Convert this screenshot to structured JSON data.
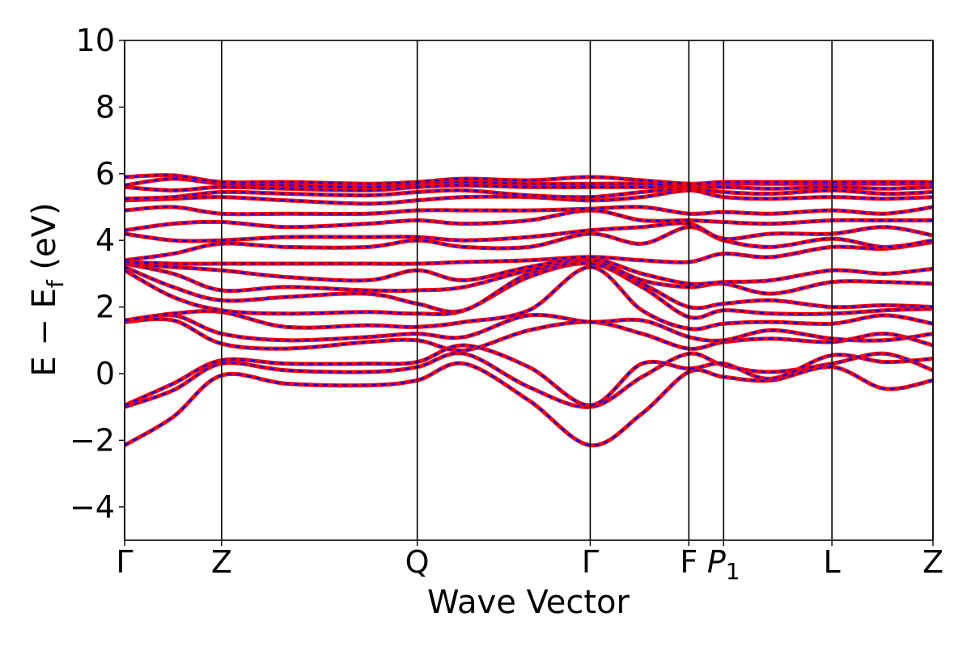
{
  "chart_data": {
    "type": "line",
    "title": "",
    "xlabel": "Wave Vector",
    "ylabel": "E − E",
    "ylabel_sub": "f",
    "ylabel_unit": " (eV)",
    "ylim": [
      -5,
      10
    ],
    "yticks": [
      -4,
      -2,
      0,
      2,
      4,
      6,
      8,
      10
    ],
    "ytick_labels": [
      "−4",
      "−2",
      "0",
      "2",
      "4",
      "6",
      "8",
      "10"
    ],
    "xlim": [
      0,
      1
    ],
    "kpoints": [
      {
        "label": "Γ",
        "sub": "",
        "x": 0.0
      },
      {
        "label": "Z",
        "sub": "",
        "x": 0.12
      },
      {
        "label": "Q",
        "sub": "",
        "x": 0.362
      },
      {
        "label": "Γ",
        "sub": "",
        "x": 0.576
      },
      {
        "label": "F",
        "sub": "",
        "x": 0.698
      },
      {
        "label": "P",
        "sub": "1",
        "x": 0.741
      },
      {
        "label": "L",
        "sub": "",
        "x": 0.875
      },
      {
        "label": "Z",
        "sub": "",
        "x": 1.0
      }
    ],
    "grid": false,
    "legend": "none",
    "series_styles": [
      {
        "color": "#ff0000",
        "style": "solid"
      },
      {
        "color": "#0000ff",
        "style": "dashed"
      }
    ],
    "bands": [
      {
        "x": [
          0,
          0.06,
          0.12,
          0.2,
          0.3,
          0.362,
          0.42,
          0.5,
          0.576,
          0.64,
          0.698,
          0.741,
          0.8,
          0.875,
          0.94,
          1.0
        ],
        "y": [
          -2.15,
          -1.3,
          -0.05,
          -0.3,
          -0.35,
          -0.2,
          0.3,
          -0.8,
          -2.15,
          -1.2,
          0.05,
          -0.1,
          -0.2,
          0.2,
          -0.45,
          -0.2
        ]
      },
      {
        "x": [
          0,
          0.06,
          0.12,
          0.2,
          0.3,
          0.362,
          0.42,
          0.5,
          0.576,
          0.64,
          0.698,
          0.741,
          0.8,
          0.875,
          0.94,
          1.0
        ],
        "y": [
          -1.0,
          -0.5,
          0.3,
          0.1,
          0.05,
          0.2,
          0.6,
          -0.4,
          -1.0,
          -0.1,
          0.6,
          0.25,
          0.05,
          0.3,
          0.6,
          0.1
        ]
      },
      {
        "x": [
          0,
          0.06,
          0.12,
          0.2,
          0.3,
          0.362,
          0.42,
          0.5,
          0.576,
          0.64,
          0.698,
          0.741,
          0.8,
          0.875,
          0.94,
          1.0
        ],
        "y": [
          -0.95,
          -0.3,
          0.4,
          0.3,
          0.3,
          0.35,
          0.85,
          0.2,
          -0.95,
          0.3,
          0.15,
          0.3,
          -0.15,
          0.55,
          0.35,
          0.45
        ]
      },
      {
        "x": [
          0,
          0.06,
          0.12,
          0.2,
          0.3,
          0.362,
          0.42,
          0.5,
          0.576,
          0.64,
          0.698,
          0.741,
          0.8,
          0.875,
          0.94,
          1.0
        ],
        "y": [
          1.55,
          1.6,
          0.9,
          0.75,
          0.95,
          1.0,
          0.7,
          1.3,
          1.55,
          1.2,
          0.75,
          0.95,
          1.05,
          0.95,
          1.2,
          0.85
        ]
      },
      {
        "x": [
          0,
          0.06,
          0.12,
          0.2,
          0.3,
          0.362,
          0.42,
          0.5,
          0.576,
          0.64,
          0.698,
          0.741,
          0.8,
          0.875,
          0.94,
          1.0
        ],
        "y": [
          1.55,
          1.75,
          1.2,
          1.0,
          1.1,
          1.2,
          1.1,
          1.75,
          1.55,
          1.6,
          1.1,
          1.0,
          1.3,
          1.05,
          1.0,
          1.2
        ]
      },
      {
        "x": [
          0,
          0.06,
          0.12,
          0.2,
          0.3,
          0.362,
          0.42,
          0.5,
          0.576,
          0.64,
          0.698,
          0.741,
          0.8,
          0.875,
          0.94,
          1.0
        ],
        "y": [
          1.6,
          1.8,
          1.85,
          1.4,
          1.45,
          1.4,
          1.55,
          1.9,
          3.2,
          1.9,
          1.35,
          1.5,
          1.55,
          1.5,
          1.75,
          1.5
        ]
      },
      {
        "x": [
          0,
          0.06,
          0.12,
          0.2,
          0.3,
          0.362,
          0.42,
          0.5,
          0.576,
          0.64,
          0.698,
          0.741,
          0.8,
          0.875,
          0.94,
          1.0
        ],
        "y": [
          3.1,
          2.3,
          1.9,
          1.8,
          1.85,
          1.8,
          1.9,
          2.9,
          3.3,
          2.6,
          1.7,
          1.9,
          1.8,
          1.8,
          1.9,
          1.95
        ]
      },
      {
        "x": [
          0,
          0.06,
          0.12,
          0.2,
          0.3,
          0.362,
          0.42,
          0.5,
          0.576,
          0.64,
          0.698,
          0.741,
          0.8,
          0.875,
          0.94,
          1.0
        ],
        "y": [
          3.2,
          2.6,
          2.2,
          2.3,
          2.4,
          2.1,
          1.9,
          3.0,
          3.3,
          2.7,
          2.0,
          2.1,
          2.2,
          2.0,
          2.05,
          2.0
        ]
      },
      {
        "x": [
          0,
          0.06,
          0.12,
          0.2,
          0.3,
          0.362,
          0.42,
          0.5,
          0.576,
          0.64,
          0.698,
          0.741,
          0.8,
          0.875,
          0.94,
          1.0
        ],
        "y": [
          3.3,
          3.0,
          2.5,
          2.6,
          2.5,
          2.5,
          2.6,
          3.1,
          3.4,
          2.8,
          2.6,
          2.7,
          2.4,
          2.75,
          2.75,
          2.7
        ]
      },
      {
        "x": [
          0,
          0.06,
          0.12,
          0.2,
          0.3,
          0.362,
          0.42,
          0.5,
          0.576,
          0.64,
          0.698,
          0.741,
          0.8,
          0.875,
          0.94,
          1.0
        ],
        "y": [
          3.3,
          3.2,
          3.1,
          2.9,
          2.8,
          3.1,
          2.8,
          3.2,
          3.45,
          3.0,
          2.7,
          2.75,
          2.8,
          3.1,
          3.0,
          3.15
        ]
      },
      {
        "x": [
          0,
          0.06,
          0.12,
          0.2,
          0.3,
          0.362,
          0.42,
          0.5,
          0.576,
          0.64,
          0.698,
          0.741,
          0.8,
          0.875,
          0.94,
          1.0
        ],
        "y": [
          3.35,
          3.3,
          3.3,
          3.3,
          3.3,
          3.3,
          3.35,
          3.4,
          3.5,
          3.4,
          3.35,
          3.6,
          3.5,
          3.8,
          3.75,
          3.95
        ]
      },
      {
        "x": [
          0,
          0.06,
          0.12,
          0.2,
          0.3,
          0.362,
          0.42,
          0.5,
          0.576,
          0.64,
          0.698,
          0.741,
          0.8,
          0.875,
          0.94,
          1.0
        ],
        "y": [
          3.4,
          3.6,
          3.9,
          3.8,
          3.8,
          4.0,
          3.8,
          3.8,
          4.2,
          3.9,
          4.4,
          4.0,
          3.8,
          4.05,
          3.8,
          4.0
        ]
      },
      {
        "x": [
          0,
          0.06,
          0.12,
          0.2,
          0.3,
          0.362,
          0.42,
          0.5,
          0.576,
          0.64,
          0.698,
          0.741,
          0.8,
          0.875,
          0.94,
          1.0
        ],
        "y": [
          4.2,
          4.0,
          4.0,
          4.1,
          4.1,
          4.1,
          4.0,
          4.1,
          4.3,
          4.4,
          4.5,
          4.05,
          4.2,
          4.2,
          4.4,
          4.15
        ]
      },
      {
        "x": [
          0,
          0.06,
          0.12,
          0.2,
          0.3,
          0.362,
          0.42,
          0.5,
          0.576,
          0.64,
          0.698,
          0.741,
          0.8,
          0.875,
          0.94,
          1.0
        ],
        "y": [
          4.3,
          4.5,
          4.55,
          4.4,
          4.5,
          4.6,
          4.5,
          4.6,
          4.9,
          4.6,
          4.6,
          4.55,
          4.5,
          4.6,
          4.6,
          4.6
        ]
      },
      {
        "x": [
          0,
          0.06,
          0.12,
          0.2,
          0.3,
          0.362,
          0.42,
          0.5,
          0.576,
          0.64,
          0.698,
          0.741,
          0.8,
          0.875,
          0.94,
          1.0
        ],
        "y": [
          4.9,
          5.0,
          4.8,
          4.8,
          4.8,
          4.9,
          4.9,
          4.9,
          4.95,
          5.0,
          4.8,
          4.85,
          4.8,
          4.9,
          4.8,
          5.0
        ]
      },
      {
        "x": [
          0,
          0.06,
          0.12,
          0.2,
          0.3,
          0.362,
          0.42,
          0.5,
          0.576,
          0.64,
          0.698,
          0.741,
          0.8,
          0.875,
          0.94,
          1.0
        ],
        "y": [
          5.2,
          5.25,
          5.3,
          5.2,
          5.1,
          5.2,
          5.3,
          5.3,
          5.2,
          5.3,
          5.5,
          5.3,
          5.25,
          5.3,
          5.25,
          5.3
        ]
      },
      {
        "x": [
          0,
          0.06,
          0.12,
          0.2,
          0.3,
          0.362,
          0.42,
          0.5,
          0.576,
          0.64,
          0.698,
          0.741,
          0.8,
          0.875,
          0.94,
          1.0
        ],
        "y": [
          5.25,
          5.3,
          5.45,
          5.4,
          5.35,
          5.45,
          5.5,
          5.35,
          5.3,
          5.45,
          5.55,
          5.45,
          5.4,
          5.5,
          5.4,
          5.45
        ]
      },
      {
        "x": [
          0,
          0.06,
          0.12,
          0.2,
          0.3,
          0.362,
          0.42,
          0.5,
          0.576,
          0.64,
          0.698,
          0.741,
          0.8,
          0.875,
          0.94,
          1.0
        ],
        "y": [
          5.6,
          5.5,
          5.6,
          5.55,
          5.5,
          5.6,
          5.65,
          5.6,
          5.6,
          5.6,
          5.6,
          5.6,
          5.55,
          5.6,
          5.55,
          5.6
        ]
      },
      {
        "x": [
          0,
          0.06,
          0.12,
          0.2,
          0.3,
          0.362,
          0.42,
          0.5,
          0.576,
          0.64,
          0.698,
          0.741,
          0.8,
          0.875,
          0.94,
          1.0
        ],
        "y": [
          5.65,
          5.85,
          5.7,
          5.65,
          5.6,
          5.7,
          5.75,
          5.7,
          5.7,
          5.7,
          5.65,
          5.7,
          5.7,
          5.7,
          5.7,
          5.7
        ]
      },
      {
        "x": [
          0,
          0.06,
          0.12,
          0.2,
          0.3,
          0.362,
          0.42,
          0.5,
          0.576,
          0.64,
          0.698,
          0.741,
          0.8,
          0.875,
          0.94,
          1.0
        ],
        "y": [
          5.9,
          5.95,
          5.75,
          5.75,
          5.7,
          5.75,
          5.85,
          5.8,
          5.9,
          5.8,
          5.7,
          5.75,
          5.75,
          5.75,
          5.75,
          5.75
        ]
      }
    ]
  }
}
